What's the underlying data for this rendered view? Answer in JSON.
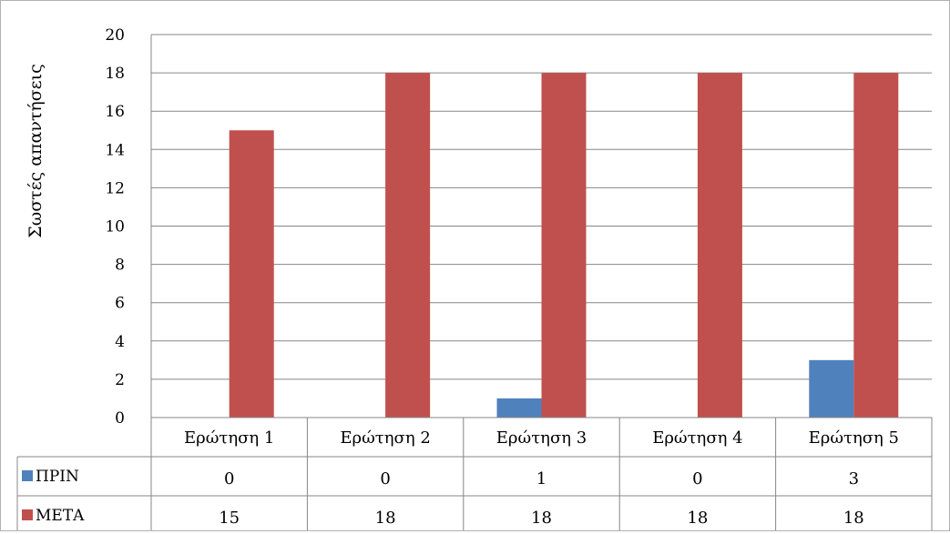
{
  "chart_data": {
    "type": "bar",
    "title": "",
    "ylabel": "Σωστές απαντήσεις",
    "xlabel": "",
    "ylim": [
      0,
      20
    ],
    "yticks": [
      0,
      2,
      4,
      6,
      8,
      10,
      12,
      14,
      16,
      18,
      20
    ],
    "grid": true,
    "legend": "data-table",
    "categories": [
      "Ερώτηση 1",
      "Ερώτηση 2",
      "Ερώτηση 3",
      "Ερώτηση 4",
      "Ερώτηση 5"
    ],
    "series": [
      {
        "name": "ΠΡΙΝ",
        "color": "#4F81BD",
        "values": [
          0,
          0,
          1,
          0,
          3
        ]
      },
      {
        "name": "ΜΕΤΑ",
        "color": "#C0504D",
        "values": [
          15,
          18,
          18,
          18,
          18
        ]
      }
    ]
  }
}
